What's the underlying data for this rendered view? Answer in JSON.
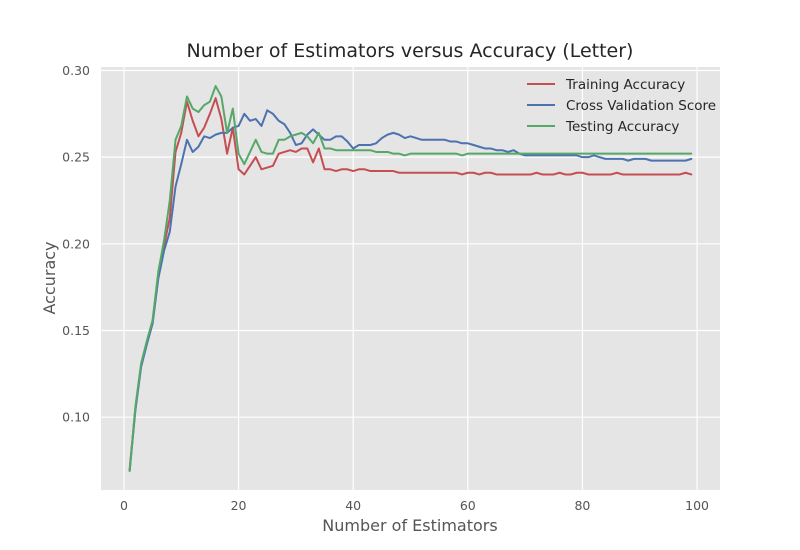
{
  "chart_data": {
    "type": "line",
    "title": "Number of Estimators versus Accuracy (Letter)",
    "xlabel": "Number of Estimators",
    "ylabel": "Accuracy",
    "xlim": [
      -4,
      104
    ],
    "ylim": [
      0.058,
      0.302
    ],
    "xticks": [
      0,
      20,
      40,
      60,
      80,
      100
    ],
    "xtick_labels": [
      "0",
      "20",
      "40",
      "60",
      "80",
      "100"
    ],
    "yticks": [
      0.1,
      0.15,
      0.2,
      0.25,
      0.3
    ],
    "ytick_labels": [
      "0.10",
      "0.15",
      "0.20",
      "0.25",
      "0.30"
    ],
    "grid": true,
    "legend_position": "top-right",
    "colors": {
      "background": "#e5e5e5",
      "grid": "#ffffff",
      "training": "#c44e52",
      "cv": "#4c72b0",
      "testing": "#55a868"
    },
    "x": [
      1,
      2,
      3,
      4,
      5,
      6,
      7,
      8,
      9,
      10,
      11,
      12,
      13,
      14,
      15,
      16,
      17,
      18,
      19,
      20,
      21,
      22,
      23,
      24,
      25,
      26,
      27,
      28,
      29,
      30,
      31,
      32,
      33,
      34,
      35,
      36,
      37,
      38,
      39,
      40,
      41,
      42,
      43,
      44,
      45,
      46,
      47,
      48,
      49,
      50,
      51,
      52,
      53,
      54,
      55,
      56,
      57,
      58,
      59,
      60,
      61,
      62,
      63,
      64,
      65,
      66,
      67,
      68,
      69,
      70,
      71,
      72,
      73,
      74,
      75,
      76,
      77,
      78,
      79,
      80,
      81,
      82,
      83,
      84,
      85,
      86,
      87,
      88,
      89,
      90,
      91,
      92,
      93,
      94,
      95,
      96,
      97,
      98,
      99
    ],
    "series": [
      {
        "name": "Training Accuracy",
        "color": "#c44e52",
        "values": [
          0.07,
          0.105,
          0.13,
          0.143,
          0.155,
          0.182,
          0.199,
          0.215,
          0.253,
          0.264,
          0.282,
          0.271,
          0.262,
          0.267,
          0.275,
          0.284,
          0.272,
          0.252,
          0.267,
          0.243,
          0.24,
          0.245,
          0.25,
          0.243,
          0.244,
          0.245,
          0.252,
          0.253,
          0.254,
          0.253,
          0.255,
          0.255,
          0.247,
          0.255,
          0.243,
          0.243,
          0.242,
          0.243,
          0.243,
          0.242,
          0.243,
          0.243,
          0.242,
          0.242,
          0.242,
          0.242,
          0.242,
          0.241,
          0.241,
          0.241,
          0.241,
          0.241,
          0.241,
          0.241,
          0.241,
          0.241,
          0.241,
          0.241,
          0.24,
          0.241,
          0.241,
          0.24,
          0.241,
          0.241,
          0.24,
          0.24,
          0.24,
          0.24,
          0.24,
          0.24,
          0.24,
          0.241,
          0.24,
          0.24,
          0.24,
          0.241,
          0.24,
          0.24,
          0.241,
          0.241,
          0.24,
          0.24,
          0.24,
          0.24,
          0.24,
          0.241,
          0.24,
          0.24,
          0.24,
          0.24,
          0.24,
          0.24,
          0.24,
          0.24,
          0.24,
          0.24,
          0.24,
          0.241,
          0.24
        ]
      },
      {
        "name": "Cross Validation Score",
        "color": "#4c72b0",
        "values": [
          0.069,
          0.104,
          0.129,
          0.142,
          0.154,
          0.18,
          0.196,
          0.207,
          0.233,
          0.246,
          0.26,
          0.253,
          0.256,
          0.262,
          0.261,
          0.263,
          0.264,
          0.264,
          0.267,
          0.268,
          0.275,
          0.271,
          0.272,
          0.268,
          0.277,
          0.275,
          0.271,
          0.269,
          0.264,
          0.257,
          0.258,
          0.263,
          0.266,
          0.263,
          0.26,
          0.26,
          0.262,
          0.262,
          0.259,
          0.255,
          0.257,
          0.257,
          0.257,
          0.258,
          0.261,
          0.263,
          0.264,
          0.263,
          0.261,
          0.262,
          0.261,
          0.26,
          0.26,
          0.26,
          0.26,
          0.26,
          0.259,
          0.259,
          0.258,
          0.258,
          0.257,
          0.256,
          0.255,
          0.255,
          0.254,
          0.254,
          0.253,
          0.254,
          0.252,
          0.251,
          0.251,
          0.251,
          0.251,
          0.251,
          0.251,
          0.251,
          0.251,
          0.251,
          0.251,
          0.25,
          0.25,
          0.251,
          0.25,
          0.249,
          0.249,
          0.249,
          0.249,
          0.248,
          0.249,
          0.249,
          0.249,
          0.248,
          0.248,
          0.248,
          0.248,
          0.248,
          0.248,
          0.248,
          0.249
        ]
      },
      {
        "name": "Testing Accuracy",
        "color": "#55a868",
        "values": [
          0.069,
          0.106,
          0.131,
          0.144,
          0.156,
          0.184,
          0.202,
          0.225,
          0.26,
          0.268,
          0.285,
          0.278,
          0.276,
          0.28,
          0.282,
          0.291,
          0.285,
          0.264,
          0.278,
          0.252,
          0.246,
          0.253,
          0.26,
          0.253,
          0.252,
          0.252,
          0.26,
          0.26,
          0.262,
          0.263,
          0.264,
          0.262,
          0.258,
          0.264,
          0.255,
          0.255,
          0.254,
          0.254,
          0.254,
          0.254,
          0.254,
          0.254,
          0.254,
          0.253,
          0.253,
          0.253,
          0.252,
          0.252,
          0.251,
          0.252,
          0.252,
          0.252,
          0.252,
          0.252,
          0.252,
          0.252,
          0.252,
          0.252,
          0.251,
          0.252,
          0.252,
          0.252,
          0.252,
          0.252,
          0.252,
          0.252,
          0.252,
          0.252,
          0.252,
          0.252,
          0.252,
          0.252,
          0.252,
          0.252,
          0.252,
          0.252,
          0.252,
          0.252,
          0.252,
          0.252,
          0.252,
          0.252,
          0.252,
          0.252,
          0.252,
          0.252,
          0.252,
          0.252,
          0.252,
          0.252,
          0.252,
          0.252,
          0.252,
          0.252,
          0.252,
          0.252,
          0.252,
          0.252,
          0.252
        ]
      }
    ]
  }
}
